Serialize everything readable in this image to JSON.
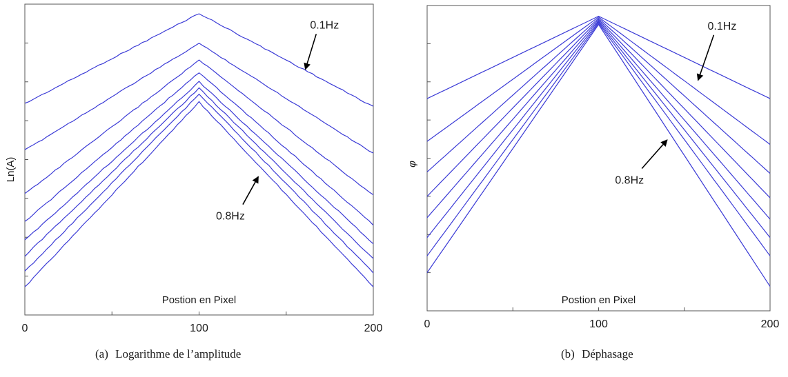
{
  "chart_data": [
    {
      "type": "line",
      "panel": "(a)",
      "caption": "Logarithme de l’amplitude",
      "xlabel": "Postion en Pixel",
      "ylabel": "Ln(A)",
      "xlim": [
        0,
        200
      ],
      "x_ticks": [
        "0",
        "100",
        "200"
      ],
      "ylim": [
        0,
        1
      ],
      "grid": false,
      "line_color": "#3b3bd6",
      "x": [
        0,
        100,
        200
      ],
      "series": [
        {
          "values": [
            0.68,
            0.97,
            0.67
          ]
        },
        {
          "values": [
            0.53,
            0.874,
            0.52
          ]
        },
        {
          "values": [
            0.39,
            0.82,
            0.385
          ]
        },
        {
          "values": [
            0.3,
            0.78,
            0.29
          ]
        },
        {
          "values": [
            0.24,
            0.75,
            0.23
          ]
        },
        {
          "values": [
            0.19,
            0.73,
            0.18
          ]
        },
        {
          "values": [
            0.14,
            0.71,
            0.135
          ]
        },
        {
          "values": [
            0.09,
            0.685,
            0.09
          ]
        }
      ],
      "annotations": [
        {
          "text": "0.1Hz",
          "x": 172,
          "y": 0.935,
          "arrow_to": [
            161,
            0.79
          ]
        },
        {
          "text": "0.8Hz",
          "x": 118,
          "y": 0.32,
          "arrow_to": [
            134,
            0.445
          ]
        }
      ]
    },
    {
      "type": "line",
      "panel": "(b)",
      "caption": "Déphasage",
      "xlabel": "Postion en Pixel",
      "ylabel": "φ",
      "xlim": [
        0,
        200
      ],
      "x_ticks": [
        "0",
        "100",
        "200"
      ],
      "ylim": [
        0,
        1
      ],
      "grid": false,
      "line_color": "#3b3bd6",
      "x": [
        0,
        100,
        200
      ],
      "series": [
        {
          "values": [
            0.695,
            0.965,
            0.695
          ]
        },
        {
          "values": [
            0.555,
            0.962,
            0.545
          ]
        },
        {
          "values": [
            0.455,
            0.958,
            0.45
          ]
        },
        {
          "values": [
            0.375,
            0.954,
            0.37
          ]
        },
        {
          "values": [
            0.305,
            0.95,
            0.3
          ]
        },
        {
          "values": [
            0.24,
            0.946,
            0.24
          ]
        },
        {
          "values": [
            0.18,
            0.942,
            0.18
          ]
        },
        {
          "values": [
            0.125,
            0.938,
            0.08
          ]
        }
      ],
      "annotations": [
        {
          "text": "0.1Hz",
          "x": 172,
          "y": 0.935,
          "arrow_to": [
            158,
            0.755
          ]
        },
        {
          "text": "0.8Hz",
          "x": 118,
          "y": 0.43,
          "arrow_to": [
            140,
            0.56
          ]
        }
      ]
    }
  ],
  "captions": {
    "a_label": "(a)",
    "a_text": "Logarithme de l’amplitude",
    "b_label": "(b)",
    "b_text": "Déphasage"
  }
}
